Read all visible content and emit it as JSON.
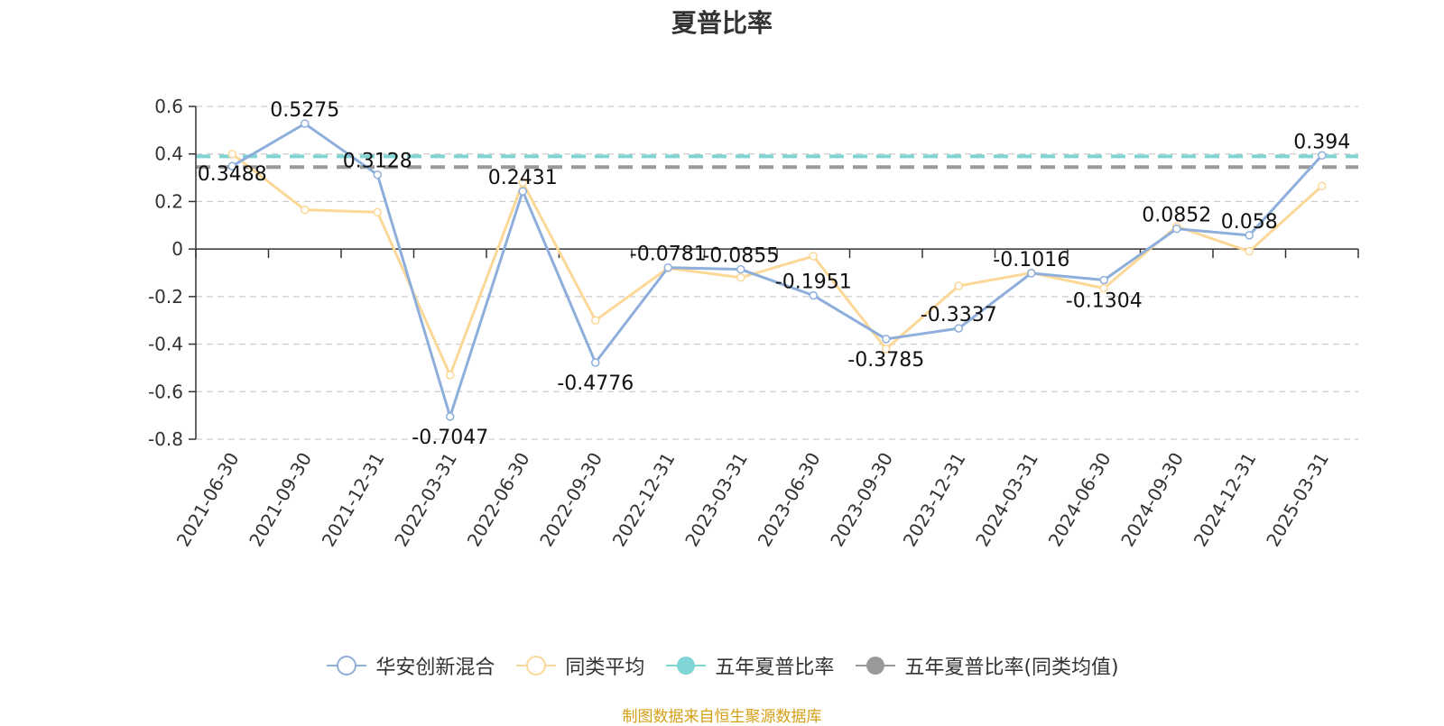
{
  "chart_data": {
    "type": "line",
    "title": "夏普比率",
    "categories": [
      "2021-06-30",
      "2021-09-30",
      "2021-12-31",
      "2022-03-31",
      "2022-06-30",
      "2022-09-30",
      "2022-12-31",
      "2023-03-31",
      "2023-06-30",
      "2023-09-30",
      "2023-12-31",
      "2024-03-31",
      "2024-06-30",
      "2024-09-30",
      "2024-12-31",
      "2025-03-31"
    ],
    "ylim": [
      -0.8,
      0.6
    ],
    "yticks": [
      "0.6",
      "0.4",
      "0.2",
      "0",
      "-0.2",
      "-0.4",
      "-0.6",
      "-0.8"
    ],
    "grid": true,
    "legend_position": "bottom",
    "series": [
      {
        "name": "华安创新混合",
        "color": "#8eaedb",
        "values": [
          0.3488,
          0.5275,
          0.3128,
          -0.7047,
          0.2431,
          -0.4776,
          -0.0781,
          -0.0855,
          -0.1951,
          -0.3785,
          -0.3337,
          -0.1016,
          -0.1304,
          0.0852,
          0.058,
          0.394
        ],
        "labels": [
          "0.3488",
          "0.5275",
          "0.3128",
          "-0.7047",
          "0.2431",
          "-0.4776",
          "-0.0781",
          "-0.0855",
          "-0.1951",
          "-0.3785",
          "-0.3337",
          "-0.1016",
          "-0.1304",
          "0.0852",
          "0.058",
          "0.394"
        ]
      },
      {
        "name": "同类平均",
        "color": "#fcd898",
        "values": [
          0.4,
          0.165,
          0.155,
          -0.53,
          0.28,
          -0.3,
          -0.08,
          -0.12,
          -0.03,
          -0.42,
          -0.155,
          -0.1,
          -0.165,
          0.095,
          -0.01,
          0.265
        ]
      },
      {
        "name": "五年夏普比率",
        "color": "#7fd4d4",
        "constant": 0.39
      },
      {
        "name": "五年夏普比率(同类均值)",
        "color": "#999999",
        "constant": 0.345
      }
    ]
  },
  "source": "制图数据来自恒生聚源数据库"
}
